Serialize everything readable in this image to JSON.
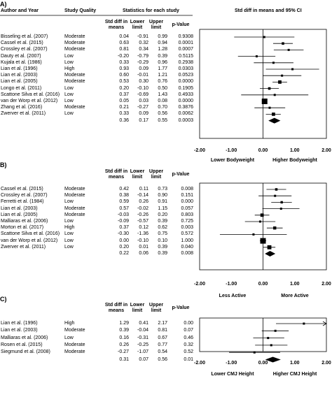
{
  "chart_data": [
    {
      "type": "forest",
      "panel": "A)",
      "headers": {
        "author": "Author and Year",
        "quality": "Study Quality",
        "stats": "Statistics for each study",
        "ci": "Std diff in means and 95% CI",
        "sdm": "Std diff in means",
        "lower": "Lower limit",
        "upper": "Upper limit",
        "p": "p-Value"
      },
      "studies": [
        {
          "author": "Bisseling et al. (2007)",
          "quality": "Moderate",
          "sdm": "0.04",
          "lower": "-0.91",
          "upper": "0.99",
          "p": "0.9308"
        },
        {
          "author": "Cassel et al. (2015)",
          "quality": "Moderate",
          "sdm": "0.63",
          "lower": "0.32",
          "upper": "0.94",
          "p": "0.0001"
        },
        {
          "author": "Crossley et al. (2007)",
          "quality": "Moderate",
          "sdm": "0.81",
          "lower": "0.34",
          "upper": "1.28",
          "p": "0.0007"
        },
        {
          "author": "Dauty et al. (2007)",
          "quality": "Low",
          "sdm": "-0.20",
          "lower": "-0.79",
          "upper": "0.39",
          "p": "0.5115"
        },
        {
          "author": "Kujala et al. (1986)",
          "quality": "Low",
          "sdm": "0.33",
          "lower": "-0.29",
          "upper": "0.96",
          "p": "0.2938"
        },
        {
          "author": "Lian et al. (1996)",
          "quality": "High",
          "sdm": "0.93",
          "lower": "0.09",
          "upper": "1.77",
          "p": "0.0303"
        },
        {
          "author": "Lian et al. (2003)",
          "quality": "Moderate",
          "sdm": "0.60",
          "lower": "-0.01",
          "upper": "1.21",
          "p": "0.0523"
        },
        {
          "author": "Lian et al. (2005)",
          "quality": "Moderate",
          "sdm": "0.53",
          "lower": "0.30",
          "upper": "0.76",
          "p": "0.0000"
        },
        {
          "author": "Longo et al. (2011)",
          "quality": "Low",
          "sdm": "0.20",
          "lower": "-0.10",
          "upper": "0.50",
          "p": "0.1905"
        },
        {
          "author": "Scattone Silva et al. (2016)",
          "quality": "Low",
          "sdm": "0.37",
          "lower": "-0.69",
          "upper": "1.43",
          "p": "0.4933"
        },
        {
          "author": "van der Worp et al. (2012)",
          "quality": "Low",
          "sdm": "0.05",
          "lower": "0.03",
          "upper": "0.08",
          "p": "0.0000"
        },
        {
          "author": "Zhang et al. (2016)",
          "quality": "Moderate",
          "sdm": "0.21",
          "lower": "-0.27",
          "upper": "0.70",
          "p": "0.3876"
        },
        {
          "author": "Zwerver et al. (2011)",
          "quality": "Low",
          "sdm": "0.33",
          "lower": "0.09",
          "upper": "0.56",
          "p": "0.0062"
        }
      ],
      "summary": {
        "sdm": "0.36",
        "lower": "0.17",
        "upper": "0.55",
        "p": "0.0003"
      },
      "xticks": [
        "-2.00",
        "-1.00",
        "0.00",
        "1.00",
        "2.00"
      ],
      "xlim": [
        -2,
        2
      ],
      "direction_left": "Lower Bodyweight",
      "direction_right": "Higher Bodyweight"
    },
    {
      "type": "forest",
      "panel": "B)",
      "headers": {
        "sdm": "Std diff in means",
        "lower": "Lower limit",
        "upper": "Upper limit",
        "p": "p-Value"
      },
      "studies": [
        {
          "author": "Cassel et al. (2015)",
          "quality": "Moderate",
          "sdm": "0.42",
          "lower": "0.11",
          "upper": "0.73",
          "p": "0.008"
        },
        {
          "author": "Crossley et al. (2007)",
          "quality": "Moderate",
          "sdm": "0.38",
          "lower": "-0.14",
          "upper": "0.90",
          "p": "0.151"
        },
        {
          "author": "Ferretti et al. (1984)",
          "quality": "Low",
          "sdm": "0.59",
          "lower": "0.26",
          "upper": "0.91",
          "p": "0.000"
        },
        {
          "author": "Lian et al. (2003)",
          "quality": "Moderate",
          "sdm": "0.57",
          "lower": "-0.02",
          "upper": "1.15",
          "p": "0.057"
        },
        {
          "author": "Lian et al. (2005)",
          "quality": "Moderate",
          "sdm": "-0.03",
          "lower": "-0.26",
          "upper": "0.20",
          "p": "0.803"
        },
        {
          "author": "Malliaras et al. (2006)",
          "quality": "Low",
          "sdm": "-0.09",
          "lower": "-0.57",
          "upper": "0.39",
          "p": "0.725"
        },
        {
          "author": "Morton et al. (2017)",
          "quality": "High",
          "sdm": "0.37",
          "lower": "0.12",
          "upper": "0.62",
          "p": "0.003"
        },
        {
          "author": "Scattone Silva et al. (2016)",
          "quality": "Low",
          "sdm": "-0.30",
          "lower": "-1.36",
          "upper": "0.75",
          "p": "0.572"
        },
        {
          "author": "van der Worp et al. (2012)",
          "quality": "Low",
          "sdm": "0.00",
          "lower": "-0.10",
          "upper": "0.10",
          "p": "1.000"
        },
        {
          "author": "Zwerver et al. (2011)",
          "quality": "Low",
          "sdm": "0.20",
          "lower": "0.01",
          "upper": "0.39",
          "p": "0.040"
        }
      ],
      "summary": {
        "sdm": "0.22",
        "lower": "0.06",
        "upper": "0.39",
        "p": "0.008"
      },
      "xticks": [
        "-2.00",
        "-1.00",
        "0.00",
        "1.00",
        "2.00"
      ],
      "xlim": [
        -2,
        2
      ],
      "direction_left": "Less Active",
      "direction_right": "More Active"
    },
    {
      "type": "forest",
      "panel": "C)",
      "headers": {
        "sdm": "Std diff in means",
        "lower": "Lower limit",
        "upper": "Upper limit",
        "p": "p-Value"
      },
      "studies": [
        {
          "author": "Lian et al. (1996)",
          "quality": "High",
          "sdm": "1.29",
          "lower": "0.41",
          "upper": "2.17",
          "p": "0.00"
        },
        {
          "author": "Lian et al. (2003)",
          "quality": "Moderate",
          "sdm": "0.39",
          "lower": "-0.04",
          "upper": "0.81",
          "p": "0.07"
        },
        {
          "author": "Malliaras et al. (2006)",
          "quality": "Low",
          "sdm": "0.16",
          "lower": "-0.31",
          "upper": "0.67",
          "p": "0.46"
        },
        {
          "author": "Rosen et al. (2015)",
          "quality": "Moderate",
          "sdm": "0.26",
          "lower": "-0.25",
          "upper": "0.77",
          "p": "0.32"
        },
        {
          "author": "Siegmund et al. (2008)",
          "quality": "Moderate",
          "sdm": "-0.27",
          "lower": "-1.07",
          "upper": "0.54",
          "p": "0.52"
        }
      ],
      "summary": {
        "sdm": "0.31",
        "lower": "0.07",
        "upper": "0.56",
        "p": "0.01"
      },
      "xticks": [
        "-2.00",
        "-1.00",
        "0.00",
        "1.00",
        "2.00"
      ],
      "xlim": [
        -2,
        2
      ],
      "direction_left": "Lower CMJ Height",
      "direction_right": "Higher CMJ Height"
    }
  ]
}
